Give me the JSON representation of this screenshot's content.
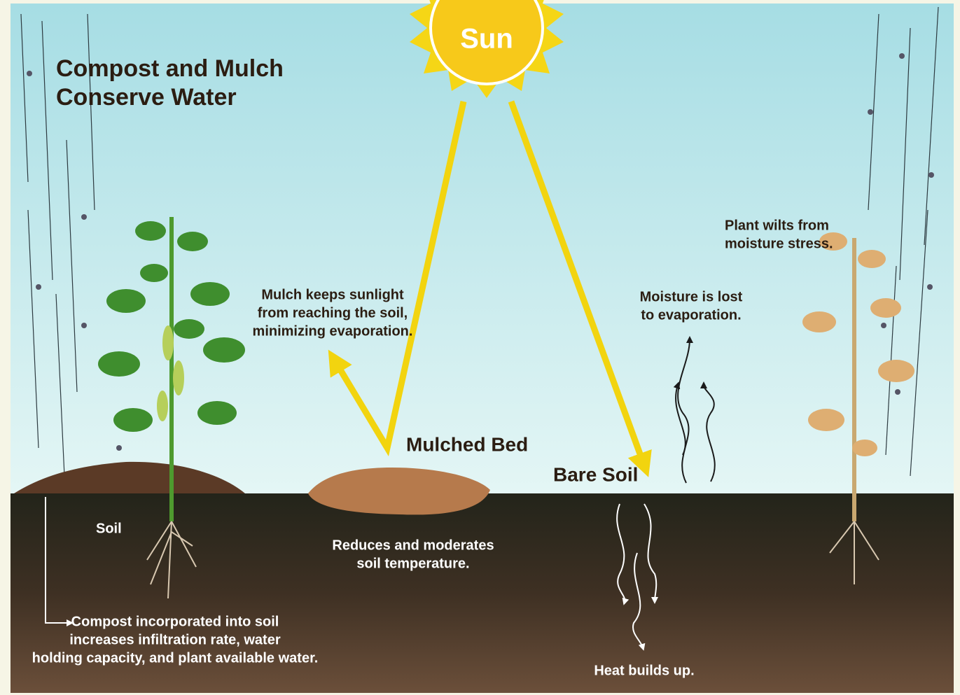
{
  "title": [
    "Compost and Mulch",
    "Conserve Water"
  ],
  "sun": "Sun",
  "mulch_note": [
    "Mulch keeps sunlight",
    "from reaching the soil,",
    "minimizing evaporation."
  ],
  "mulched_bed": "Mulched Bed",
  "bare_soil": "Bare Soil",
  "moisture_note": [
    "Moisture is lost",
    "to evaporation."
  ],
  "wilt_note": [
    "Plant wilts from",
    "moisture stress."
  ],
  "soil": "Soil",
  "temperature_note": [
    "Reduces and moderates",
    "soil temperature."
  ],
  "compost_note": [
    "Compost incorporated into soil",
    "increases infiltration rate, water",
    "holding capacity, and plant available water."
  ],
  "heat_note": "Heat builds up."
}
